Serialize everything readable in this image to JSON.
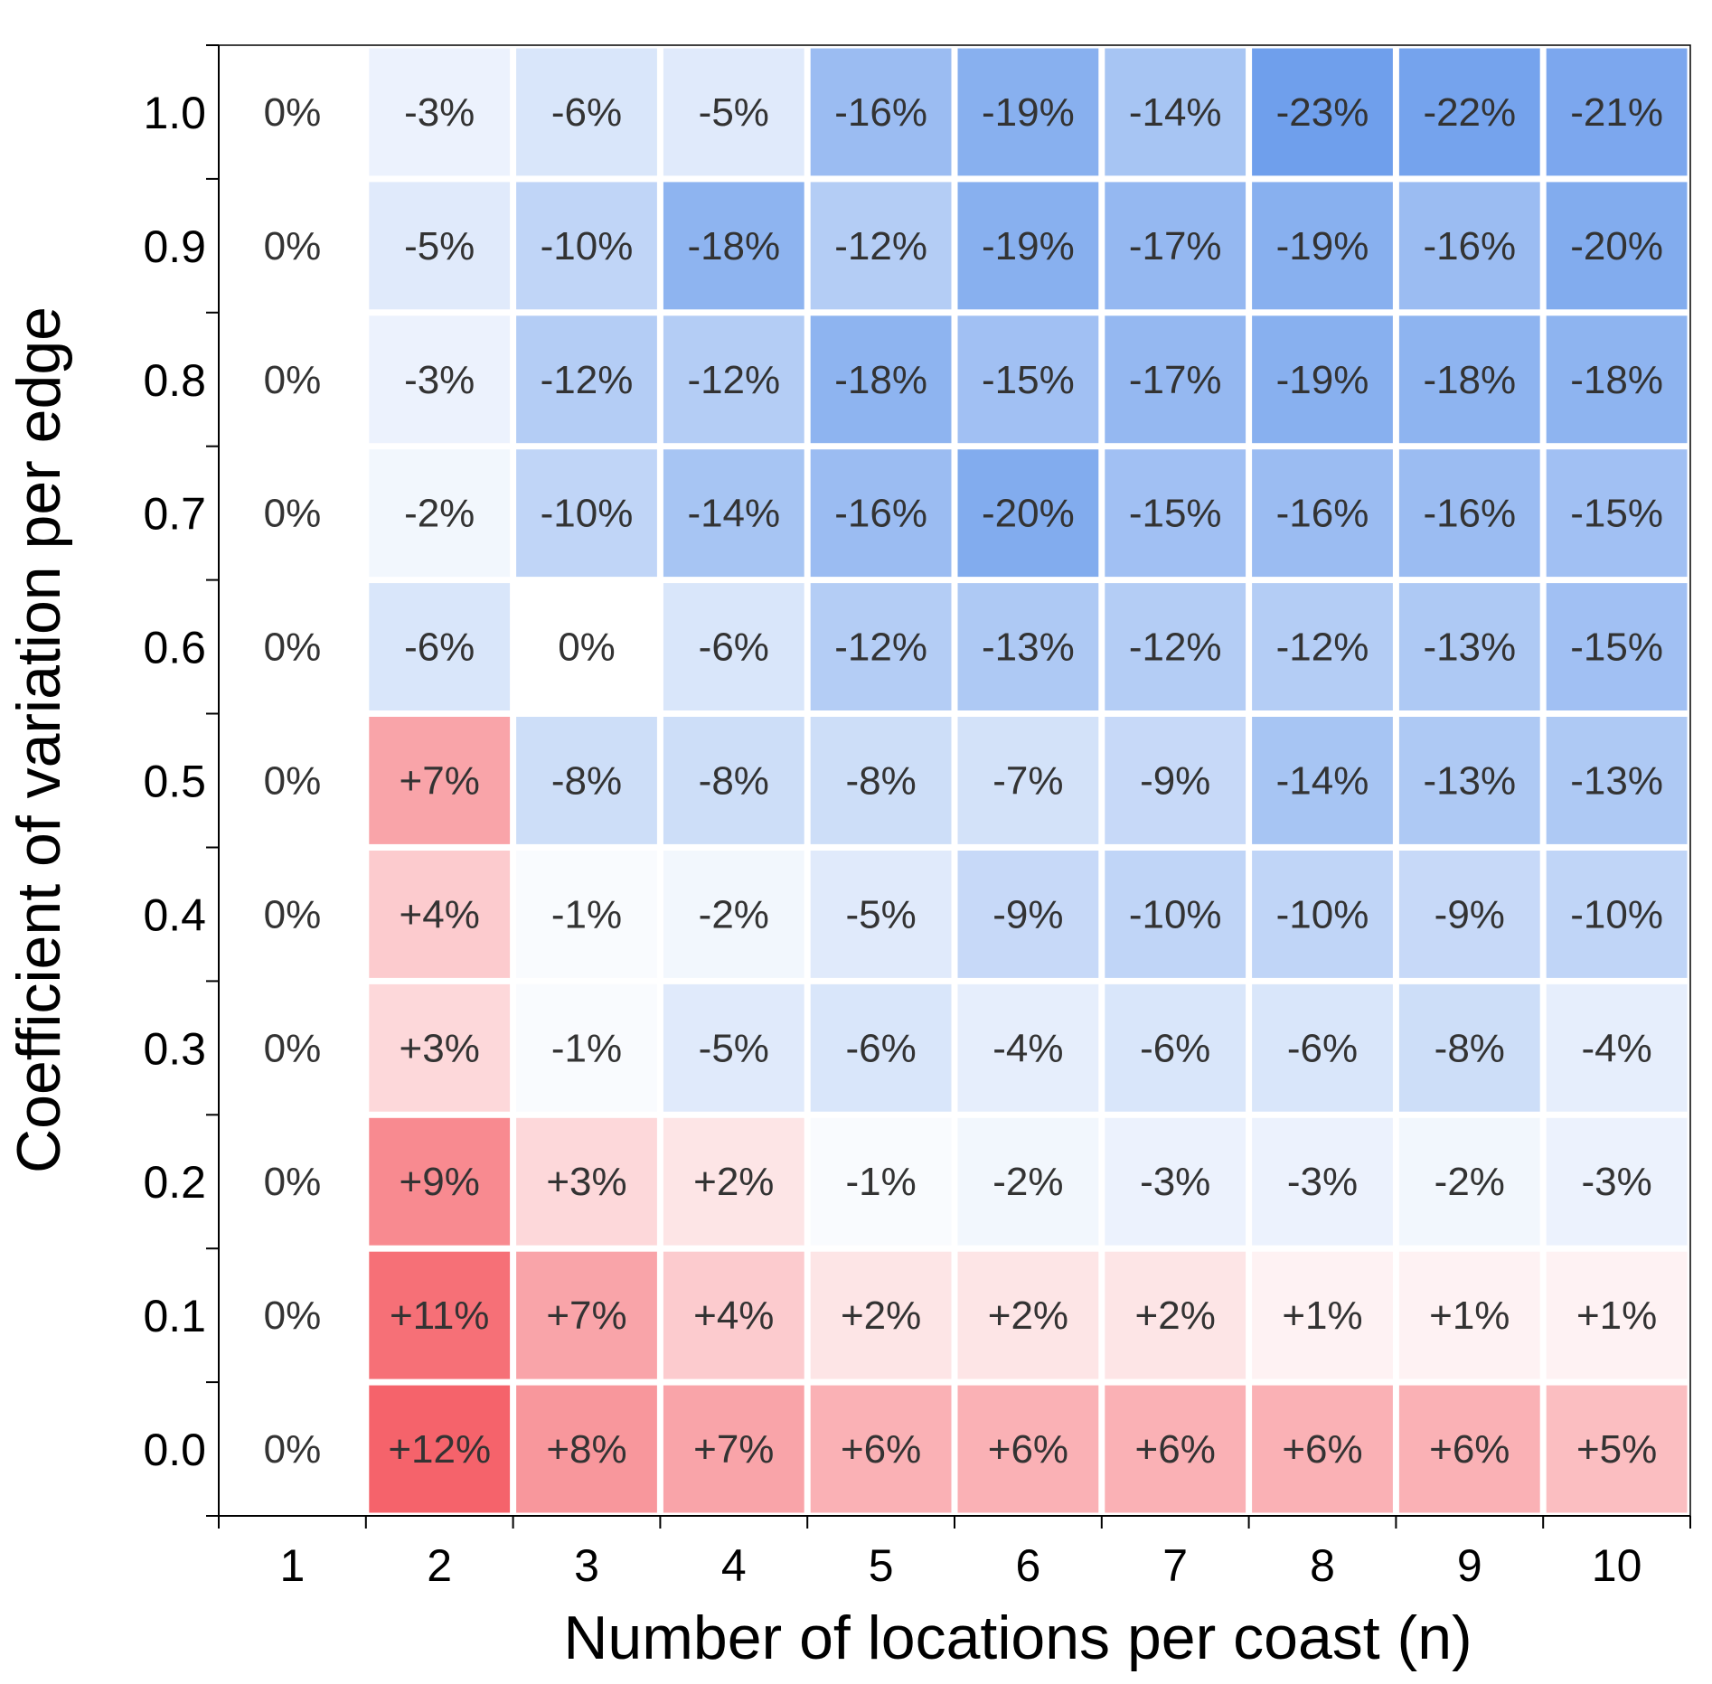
{
  "chart_data": {
    "type": "heatmap",
    "xlabel": "Number of locations per coast (n)",
    "ylabel": "Coefficient of variation per edge",
    "x": [
      "1",
      "2",
      "3",
      "4",
      "5",
      "6",
      "7",
      "8",
      "9",
      "10"
    ],
    "y": [
      "1.0",
      "0.9",
      "0.8",
      "0.7",
      "0.6",
      "0.5",
      "0.4",
      "0.3",
      "0.2",
      "0.1",
      "0.0"
    ],
    "values": [
      [
        0,
        -3,
        -6,
        -5,
        -16,
        -19,
        -14,
        -23,
        -22,
        -21
      ],
      [
        0,
        -5,
        -10,
        -18,
        -12,
        -19,
        -17,
        -19,
        -16,
        -20
      ],
      [
        0,
        -3,
        -12,
        -12,
        -18,
        -15,
        -17,
        -19,
        -18,
        -18
      ],
      [
        0,
        -2,
        -10,
        -14,
        -16,
        -20,
        -15,
        -16,
        -16,
        -15
      ],
      [
        0,
        -6,
        0,
        -6,
        -12,
        -13,
        -12,
        -12,
        -13,
        -15
      ],
      [
        0,
        7,
        -8,
        -8,
        -8,
        -7,
        -9,
        -14,
        -13,
        -13
      ],
      [
        0,
        4,
        -1,
        -2,
        -5,
        -9,
        -10,
        -10,
        -9,
        -10
      ],
      [
        0,
        3,
        -1,
        -5,
        -6,
        -4,
        -6,
        -6,
        -8,
        -4
      ],
      [
        0,
        9,
        3,
        2,
        -1,
        -2,
        -3,
        -3,
        -2,
        -3
      ],
      [
        0,
        11,
        7,
        4,
        2,
        2,
        2,
        1,
        1,
        1
      ],
      [
        0,
        12,
        8,
        7,
        6,
        6,
        6,
        6,
        6,
        5
      ]
    ],
    "labels": [
      [
        "0%",
        "-3%",
        "-6%",
        "-5%",
        "-16%",
        "-19%",
        "-14%",
        "-23%",
        "-22%",
        "-21%"
      ],
      [
        "0%",
        "-5%",
        "-10%",
        "-18%",
        "-12%",
        "-19%",
        "-17%",
        "-19%",
        "-16%",
        "-20%"
      ],
      [
        "0%",
        "-3%",
        "-12%",
        "-12%",
        "-18%",
        "-15%",
        "-17%",
        "-19%",
        "-18%",
        "-18%"
      ],
      [
        "0%",
        "-2%",
        "-10%",
        "-14%",
        "-16%",
        "-20%",
        "-15%",
        "-16%",
        "-16%",
        "-15%"
      ],
      [
        "0%",
        "-6%",
        "0%",
        "-6%",
        "-12%",
        "-13%",
        "-12%",
        "-12%",
        "-13%",
        "-15%"
      ],
      [
        "0%",
        "+7%",
        "-8%",
        "-8%",
        "-8%",
        "-7%",
        "-9%",
        "-14%",
        "-13%",
        "-13%"
      ],
      [
        "0%",
        "+4%",
        "-1%",
        "-2%",
        "-5%",
        "-9%",
        "-10%",
        "-10%",
        "-9%",
        "-10%"
      ],
      [
        "0%",
        "+3%",
        "-1%",
        "-5%",
        "-6%",
        "-4%",
        "-6%",
        "-6%",
        "-8%",
        "-4%"
      ],
      [
        "0%",
        "+9%",
        "+3%",
        "+2%",
        "-1%",
        "-2%",
        "-3%",
        "-3%",
        "-2%",
        "-3%"
      ],
      [
        "0%",
        "+11%",
        "+7%",
        "+4%",
        "+2%",
        "+2%",
        "+2%",
        "+1%",
        "+1%",
        "+1%"
      ],
      [
        "0%",
        "+12%",
        "+8%",
        "+7%",
        "+6%",
        "+6%",
        "+6%",
        "+6%",
        "+6%",
        "+5%"
      ]
    ],
    "color_scale": {
      "negative": "#6f9fec",
      "neutral": "#ffffff",
      "positive": "#f5636b",
      "neg_max": 23,
      "pos_max": 12
    },
    "grid": false
  }
}
